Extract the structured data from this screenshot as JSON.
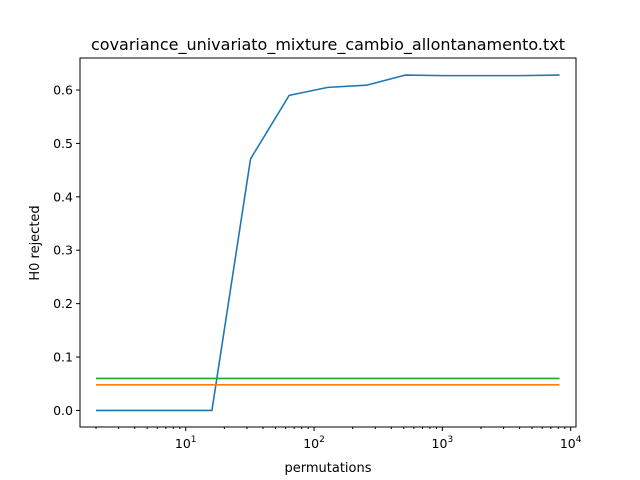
{
  "chart_data": {
    "type": "line",
    "title": "covariance_univariato_mixture_cambio_allontanamento.txt",
    "xlabel": "permutations",
    "ylabel": "H0 rejected",
    "xscale": "log",
    "xlim": [
      1.5,
      11000
    ],
    "ylim": [
      -0.031,
      0.66
    ],
    "grid": false,
    "xticks": [
      {
        "value": 10,
        "base": "10",
        "exp": "1"
      },
      {
        "value": 100,
        "base": "10",
        "exp": "2"
      },
      {
        "value": 1000,
        "base": "10",
        "exp": "3"
      },
      {
        "value": 10000,
        "base": "10",
        "exp": "4"
      }
    ],
    "yticks": [
      {
        "value": 0.0,
        "label": "0.0"
      },
      {
        "value": 0.1,
        "label": "0.1"
      },
      {
        "value": 0.2,
        "label": "0.2"
      },
      {
        "value": 0.3,
        "label": "0.3"
      },
      {
        "value": 0.4,
        "label": "0.4"
      },
      {
        "value": 0.5,
        "label": "0.5"
      },
      {
        "value": 0.6,
        "label": "0.6"
      }
    ],
    "series": [
      {
        "color": "#1f77b4",
        "x": [
          2,
          4,
          8,
          16,
          32,
          64,
          128,
          256,
          512,
          1024,
          2048,
          4096,
          8192
        ],
        "y": [
          0.0,
          0.0,
          0.0,
          0.0,
          0.471,
          0.59,
          0.605,
          0.609,
          0.628,
          0.627,
          0.627,
          0.627,
          0.628
        ]
      },
      {
        "color": "#ff7f0e",
        "x": [
          2,
          8192
        ],
        "y": [
          0.048,
          0.048
        ]
      },
      {
        "color": "#2ca02c",
        "x": [
          2,
          8192
        ],
        "y": [
          0.06,
          0.06
        ]
      }
    ]
  }
}
